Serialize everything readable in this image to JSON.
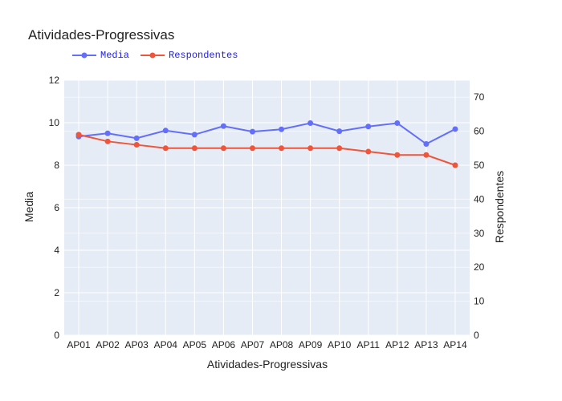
{
  "chart_data": {
    "type": "line",
    "title": "Atividades-Progressivas",
    "xlabel": "Atividades-Progressivas",
    "ylabel": "Media",
    "y2label": "Respondentes",
    "categories": [
      "AP01",
      "AP02",
      "AP03",
      "AP04",
      "AP05",
      "AP06",
      "AP07",
      "AP08",
      "AP09",
      "AP10",
      "AP11",
      "AP12",
      "AP13",
      "AP14"
    ],
    "ylim": [
      0,
      12
    ],
    "y2lim": [
      0,
      75
    ],
    "yticks": [
      0,
      2,
      4,
      6,
      8,
      10,
      12
    ],
    "y2ticks": [
      0,
      10,
      20,
      30,
      40,
      50,
      60,
      70
    ],
    "series": [
      {
        "name": "Media",
        "axis": "y",
        "color": "#636efa",
        "values": [
          9.35,
          9.5,
          9.27,
          9.63,
          9.44,
          9.84,
          9.58,
          9.69,
          9.98,
          9.6,
          9.82,
          9.98,
          9.0,
          9.7
        ]
      },
      {
        "name": "Respondentes",
        "axis": "y2",
        "color": "#ef553b",
        "values": [
          59,
          57,
          56,
          55,
          55,
          55,
          55,
          55,
          55,
          55,
          54,
          53,
          53,
          50
        ]
      }
    ],
    "grid": true,
    "legend": "top-left"
  }
}
